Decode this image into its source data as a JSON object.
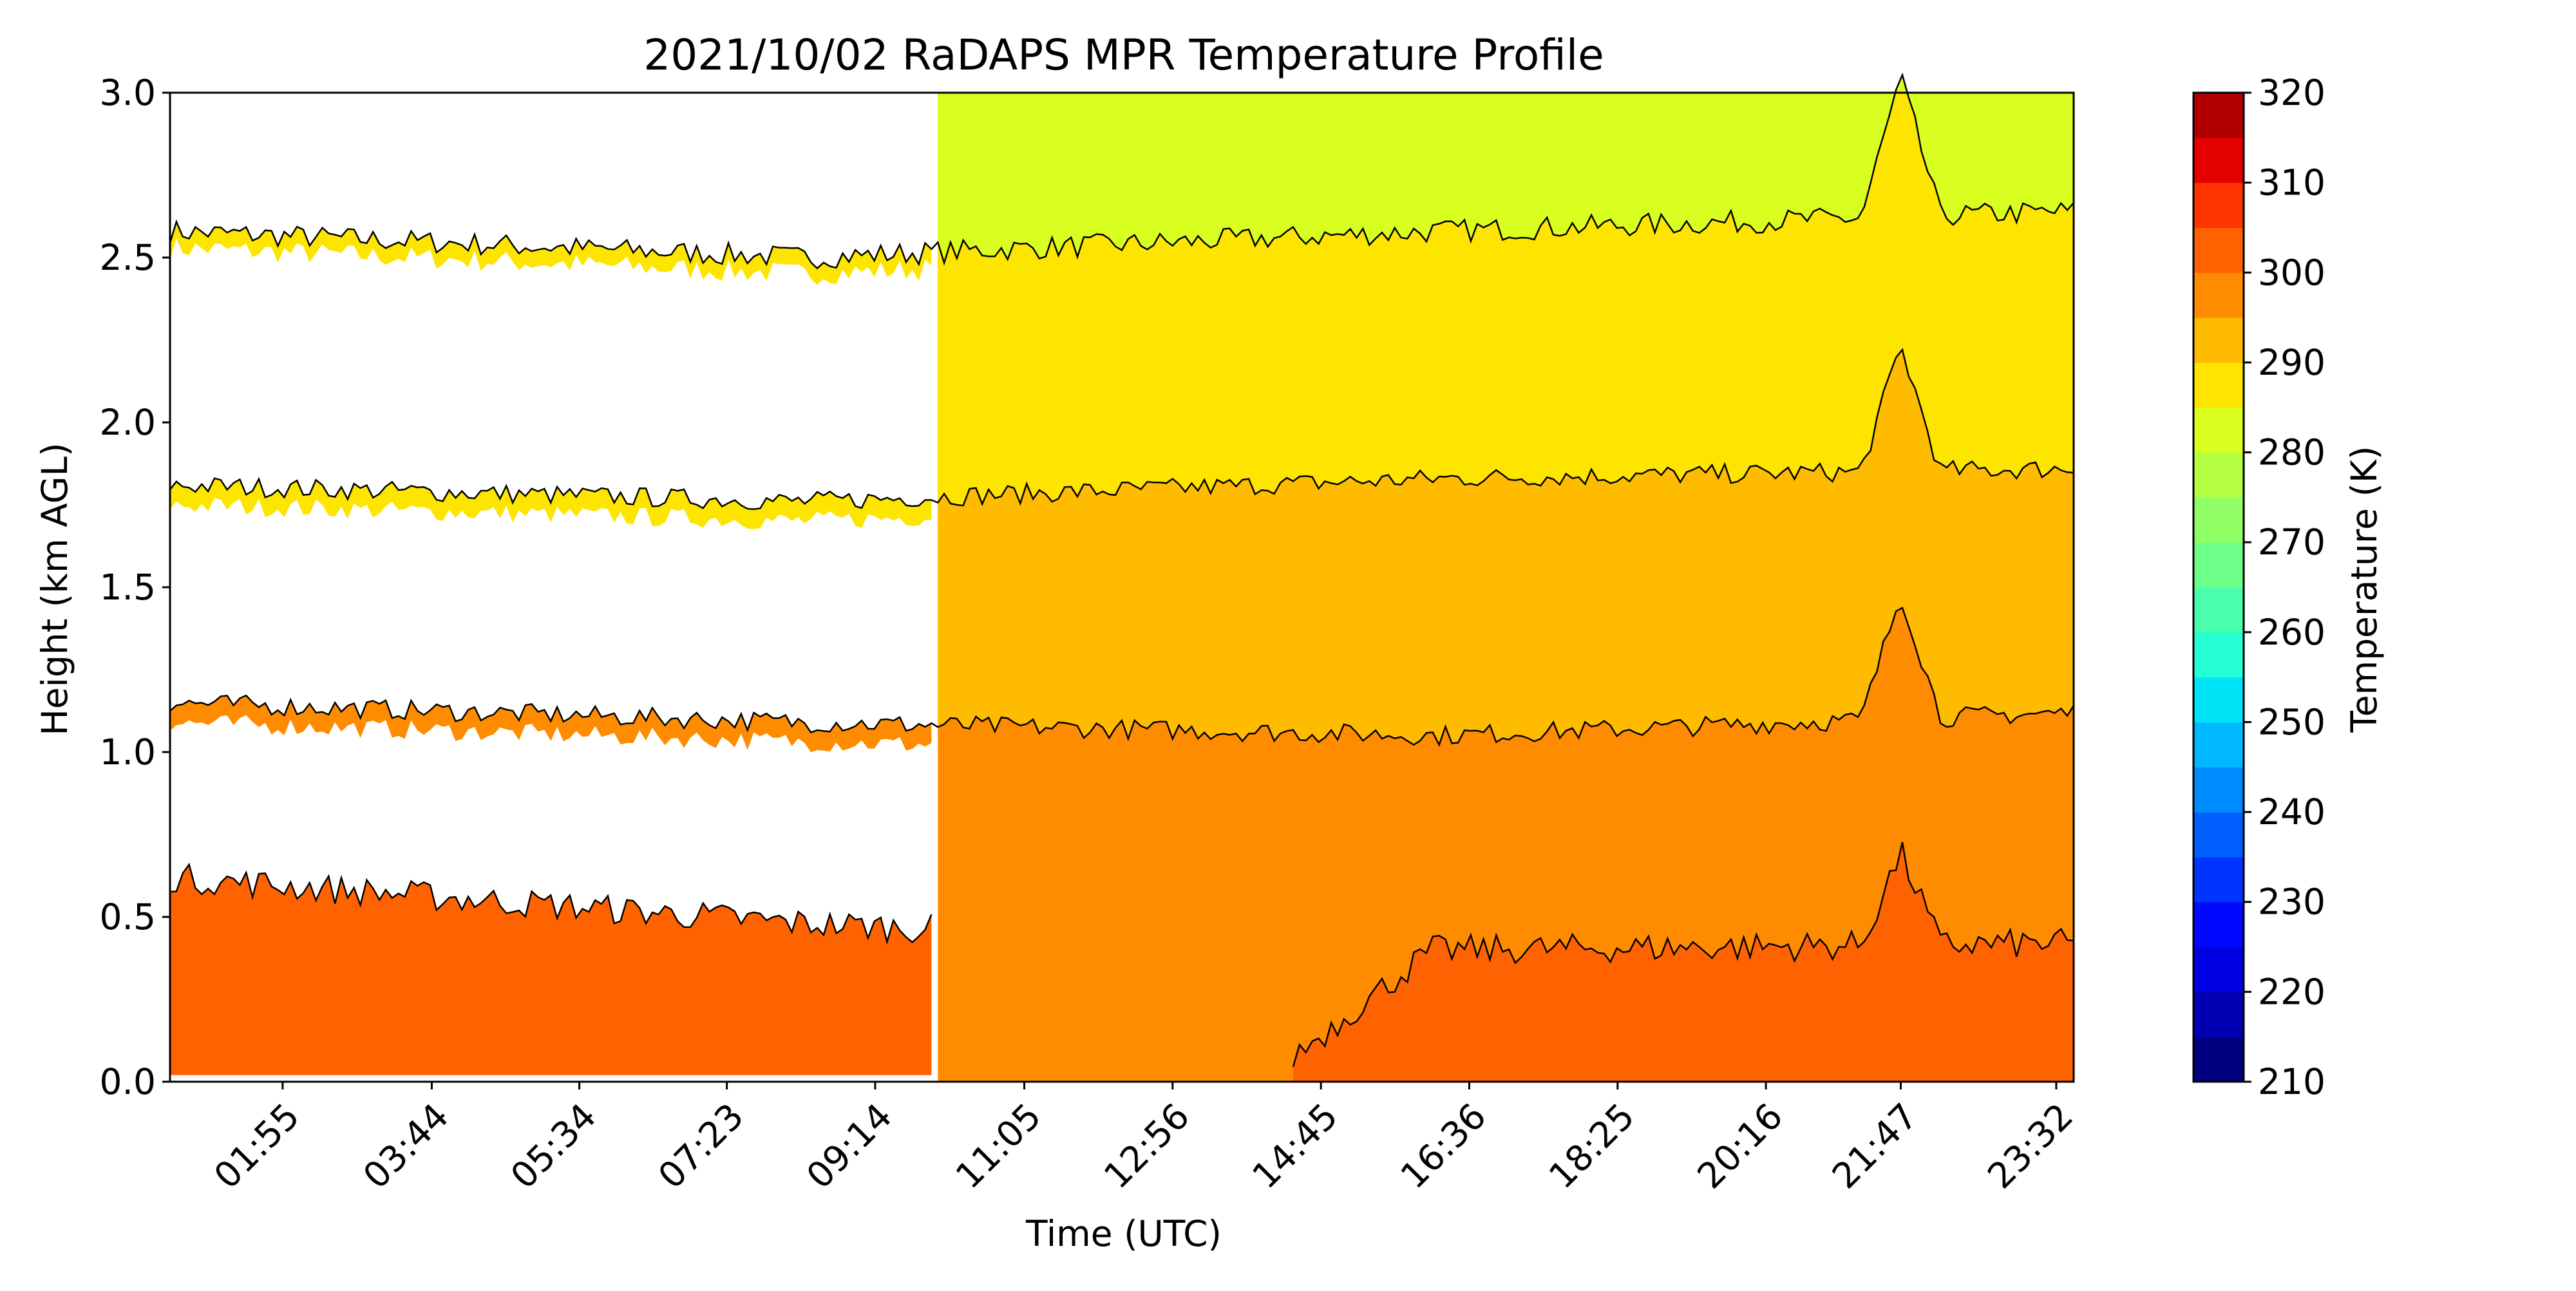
{
  "chart_data": {
    "type": "heatmap",
    "subtype": "filled-contour",
    "title": "2021/10/02 RaDAPS MPR Temperature Profile",
    "xlabel": "Time (UTC)",
    "ylabel": "Height (km AGL)",
    "colorbar_label": "Temperature (K)",
    "x_range_hours": [
      0.08,
      24.08
    ],
    "xticks": [
      {
        "label": "01:55",
        "hour": 1.5
      },
      {
        "label": "03:44",
        "hour": 3.38
      },
      {
        "label": "05:34",
        "hour": 5.24
      },
      {
        "label": "07:23",
        "hour": 7.1
      },
      {
        "label": "09:14",
        "hour": 8.97
      },
      {
        "label": "11:05",
        "hour": 10.85
      },
      {
        "label": "12:56",
        "hour": 12.72
      },
      {
        "label": "14:45",
        "hour": 14.59
      },
      {
        "label": "16:36",
        "hour": 16.46
      },
      {
        "label": "18:25",
        "hour": 18.33
      },
      {
        "label": "20:16",
        "hour": 20.2
      },
      {
        "label": "21:47",
        "hour": 21.9
      },
      {
        "label": "23:32",
        "hour": 23.86
      }
    ],
    "ylim": [
      0.0,
      3.0
    ],
    "yticks": [
      "0.0",
      "0.5",
      "1.0",
      "1.5",
      "2.0",
      "2.5",
      "3.0"
    ],
    "colorbar_range": [
      210,
      320
    ],
    "colorbar_ticks": [
      "210",
      "220",
      "230",
      "240",
      "250",
      "260",
      "270",
      "280",
      "290",
      "300",
      "310",
      "320"
    ],
    "colorbar_levels": [
      210,
      215,
      220,
      225,
      230,
      235,
      240,
      245,
      250,
      255,
      260,
      265,
      270,
      275,
      280,
      285,
      290,
      295,
      300,
      305,
      310,
      315,
      320
    ],
    "colorbar_colors": [
      "#00007f",
      "#0000b2",
      "#0000e5",
      "#0008ff",
      "#0034ff",
      "#0060ff",
      "#008cff",
      "#00b8ff",
      "#00e4f7",
      "#24ffd3",
      "#48ffae",
      "#6cff8a",
      "#90ff66",
      "#b4ff42",
      "#d8ff1f",
      "#fde500",
      "#ffbb00",
      "#ff8c00",
      "#ff6200",
      "#ff3400",
      "#e50000",
      "#b20000"
    ],
    "missing_data_period_hours": [
      0.08,
      9.72
    ],
    "contour_levels_K": [
      275,
      280,
      285,
      290,
      295
    ],
    "band_colors": {
      "above_2.6km": "#d8ff1f",
      "275_280K": "#fde500",
      "280_285K": "#ffbb00",
      "285_290K": "#ff8c00",
      "290_295K": "#ff6200"
    },
    "contour_mean_height_km": {
      "275K": [
        2.58,
        2.5,
        2.58,
        2.64
      ],
      "280K": [
        1.81,
        1.76,
        1.83,
        1.86
      ],
      "285K": [
        1.15,
        1.09,
        1.05,
        1.12
      ],
      "290K_upper": [
        0.62,
        0.48,
        0.4,
        0.42
      ]
    },
    "notable_feature": {
      "hour": 21.9,
      "description_label": "21:47"
    }
  }
}
